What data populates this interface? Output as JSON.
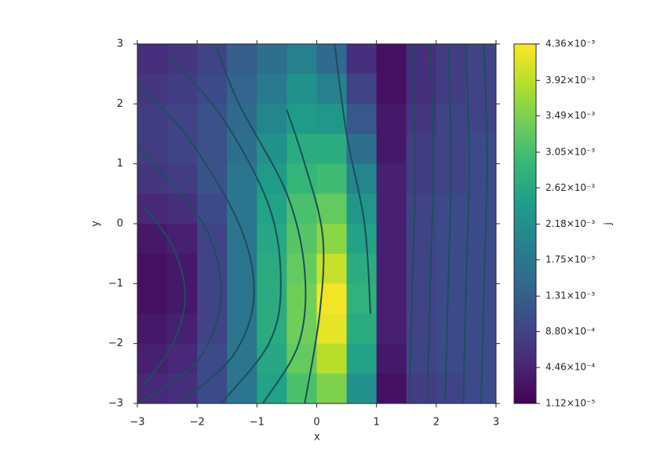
{
  "chart_data": {
    "type": "heatmap",
    "xlabel": "x",
    "ylabel": "y",
    "colorbar_label": "j",
    "xlim": [
      -3,
      3
    ],
    "ylim": [
      -3,
      3
    ],
    "xticks": [
      {
        "value": -3,
        "label": "−3"
      },
      {
        "value": -2,
        "label": "−2"
      },
      {
        "value": -1,
        "label": "−1"
      },
      0,
      1,
      2,
      3
    ],
    "yticks": [
      {
        "value": -3,
        "label": "−3"
      },
      {
        "value": -2,
        "label": "−2"
      },
      {
        "value": -1,
        "label": "−1"
      },
      0,
      1,
      2,
      3
    ],
    "x": [
      -2.75,
      -2.25,
      -1.75,
      -1.25,
      -0.75,
      -0.25,
      0.25,
      0.75,
      1.25,
      1.75,
      2.25,
      2.75
    ],
    "y": [
      2.75,
      2.25,
      1.75,
      1.25,
      0.75,
      0.25,
      -0.25,
      -0.75,
      -1.25,
      -1.75,
      -2.25,
      -2.75
    ],
    "z": [
      [
        0.0006,
        0.0007,
        0.0009,
        0.0013,
        0.0016,
        0.0019,
        0.0015,
        0.0006,
        0.0002,
        0.0006,
        0.0008,
        0.0009
      ],
      [
        0.0007,
        0.0008,
        0.001,
        0.0014,
        0.0018,
        0.0022,
        0.0019,
        0.0009,
        0.0002,
        0.0006,
        0.0008,
        0.0009
      ],
      [
        0.0008,
        0.0009,
        0.0011,
        0.0015,
        0.002,
        0.0024,
        0.0023,
        0.0012,
        0.0003,
        0.0007,
        0.0009,
        0.0009
      ],
      [
        0.0008,
        0.0009,
        0.0011,
        0.0016,
        0.0022,
        0.0027,
        0.0027,
        0.0016,
        0.0003,
        0.0008,
        0.0009,
        0.001
      ],
      [
        0.0007,
        0.0008,
        0.0011,
        0.0017,
        0.0024,
        0.0029,
        0.003,
        0.002,
        0.0004,
        0.0008,
        0.0009,
        0.001
      ],
      [
        0.0005,
        0.0006,
        0.001,
        0.0017,
        0.0025,
        0.0031,
        0.0033,
        0.0023,
        0.0004,
        0.0009,
        0.001,
        0.001
      ],
      [
        0.0003,
        0.0004,
        0.0009,
        0.0017,
        0.0026,
        0.0032,
        0.0036,
        0.0025,
        0.0004,
        0.0009,
        0.001,
        0.001
      ],
      [
        0.0002,
        0.0003,
        0.0009,
        0.0017,
        0.0027,
        0.0033,
        0.004,
        0.0027,
        0.0004,
        0.0009,
        0.001,
        0.001
      ],
      [
        0.0002,
        0.0003,
        0.0009,
        0.0017,
        0.0027,
        0.0034,
        0.0043,
        0.0028,
        0.0004,
        0.0009,
        0.001,
        0.001
      ],
      [
        0.0003,
        0.0004,
        0.0009,
        0.0017,
        0.0027,
        0.0034,
        0.0042,
        0.0027,
        0.0004,
        0.0009,
        0.001,
        0.001
      ],
      [
        0.0004,
        0.0005,
        0.001,
        0.0017,
        0.0026,
        0.0033,
        0.0039,
        0.0025,
        0.0003,
        0.0009,
        0.001,
        0.001
      ],
      [
        0.0005,
        0.0006,
        0.001,
        0.0017,
        0.0025,
        0.0031,
        0.0035,
        0.0022,
        0.0002,
        0.0008,
        0.0009,
        0.001
      ]
    ],
    "clim": [
      1.12e-05,
      0.00436
    ],
    "cticks": [
      {
        "value": 0.00436,
        "label": "4.36×10⁻³"
      },
      {
        "value": 0.00392,
        "label": "3.92×10⁻³"
      },
      {
        "value": 0.00349,
        "label": "3.49×10⁻³"
      },
      {
        "value": 0.00305,
        "label": "3.05×10⁻³"
      },
      {
        "value": 0.00262,
        "label": "2.62×10⁻³"
      },
      {
        "value": 0.00218,
        "label": "2.18×10⁻³"
      },
      {
        "value": 0.00175,
        "label": "1.75×10⁻³"
      },
      {
        "value": 0.00131,
        "label": "1.31×10⁻³"
      },
      {
        "value": 0.00088,
        "label": "8.80×10⁻⁴"
      },
      {
        "value": 0.000446,
        "label": "4.46×10⁻⁴"
      },
      {
        "value": 1.12e-05,
        "label": "1.12×10⁻⁵"
      }
    ],
    "colormap": "viridis",
    "streamline_color": "#1b4f5c",
    "streamlines": [
      {
        "x": [
          -2.9,
          -2.4,
          -2.2,
          -2.4,
          -2.9
        ],
        "y": [
          -2.7,
          -2.0,
          -1.2,
          -0.4,
          0.3
        ]
      },
      {
        "x": [
          -3,
          -2.0,
          -1.6,
          -1.9,
          -3
        ],
        "y": [
          -3,
          -2.3,
          -1.2,
          0,
          1.3
        ]
      },
      {
        "x": [
          -2.3,
          -1.4,
          -1.05,
          -1.3,
          -2.2,
          -3
        ],
        "y": [
          -3,
          -2.2,
          -1.2,
          0,
          1.5,
          2.3
        ]
      },
      {
        "x": [
          -1.6,
          -0.8,
          -0.6,
          -0.8,
          -1.6,
          -2.5
        ],
        "y": [
          -3,
          -2,
          -1,
          0.3,
          1.8,
          2.8
        ]
      },
      {
        "x": [
          -0.9,
          -0.3,
          -0.2,
          -0.5,
          -1.3,
          -1.7
        ],
        "y": [
          -3,
          -2,
          -0.8,
          0.5,
          2,
          3
        ]
      },
      {
        "x": [
          -0.2,
          0.05,
          0.1,
          -0.2,
          -0.5
        ],
        "y": [
          -3,
          -1.5,
          -0.2,
          1,
          1.9
        ]
      },
      {
        "x": [
          0.3,
          0.5,
          0.8,
          0.9
        ],
        "y": [
          3,
          1.5,
          0,
          -1.5
        ]
      },
      {
        "x": [
          1.6,
          1.65,
          1.6,
          1.55
        ],
        "y": [
          3,
          1,
          -1,
          -3
        ]
      },
      {
        "x": [
          1.9,
          1.95,
          1.9,
          1.85
        ],
        "y": [
          3,
          1,
          -1,
          -3
        ]
      },
      {
        "x": [
          2.2,
          2.25,
          2.2,
          2.15
        ],
        "y": [
          3,
          1,
          -1,
          -3
        ]
      },
      {
        "x": [
          2.5,
          2.55,
          2.5,
          2.45
        ],
        "y": [
          3,
          1,
          -1,
          -3
        ]
      },
      {
        "x": [
          2.8,
          2.85,
          2.8,
          2.75
        ],
        "y": [
          3,
          1,
          -1,
          -3
        ]
      }
    ]
  }
}
